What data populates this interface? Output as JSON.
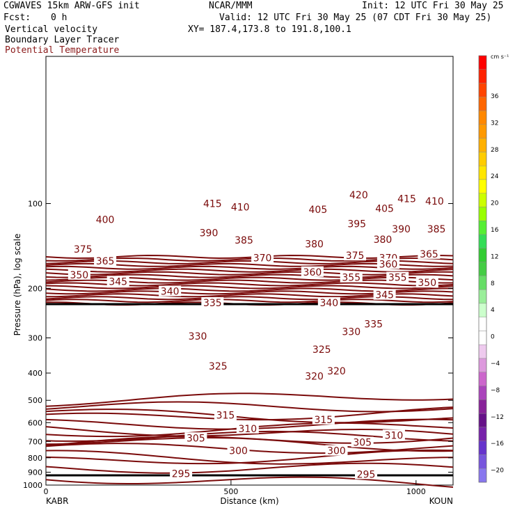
{
  "header": {
    "model": "CGWAVES 15km ARW-GFS init",
    "org": "NCAR/MMM",
    "init": "Init: 12 UTC Fri 30 May 25",
    "fcst_label": "Fcst:",
    "fcst_value": "0 h",
    "valid": "Valid: 12 UTC Fri 30 May 25 (07 CDT Fri 30 May 25)",
    "field1": "Vertical velocity",
    "xy": "XY= 187.4,173.8 to 191.8,100.1",
    "field2": "Boundary Layer Tracer",
    "field3": "Potential Temperature"
  },
  "colors": {
    "contour": "#7a0a0a",
    "tropopause": "#000000",
    "text": "#000000",
    "field3": "#8b1a1a"
  },
  "chart_data": {
    "type": "line",
    "title": "Potential Temperature",
    "xlabel": "Distance (km)",
    "ylabel": "Pressure (hPa), log scale",
    "xlim": [
      0,
      1100
    ],
    "ylim": [
      1000,
      30
    ],
    "x_ticks": [
      "0",
      "500",
      "1000"
    ],
    "y_ticks": [
      "100",
      "200",
      "300",
      "400",
      "500",
      "600",
      "700",
      "800",
      "900",
      "1000"
    ],
    "left_endpoint": "KABR",
    "right_endpoint": "KOUN",
    "contour_labels": [
      {
        "text": "420",
        "x": 845,
        "p": 93
      },
      {
        "text": "415",
        "x": 450,
        "p": 100
      },
      {
        "text": "415",
        "x": 975,
        "p": 96
      },
      {
        "text": "410",
        "x": 525,
        "p": 103
      },
      {
        "text": "410",
        "x": 1050,
        "p": 98
      },
      {
        "text": "405",
        "x": 735,
        "p": 105
      },
      {
        "text": "405",
        "x": 915,
        "p": 104
      },
      {
        "text": "400",
        "x": 160,
        "p": 114
      },
      {
        "text": "395",
        "x": 840,
        "p": 118
      },
      {
        "text": "390",
        "x": 440,
        "p": 127
      },
      {
        "text": "390",
        "x": 960,
        "p": 123
      },
      {
        "text": "385",
        "x": 535,
        "p": 135
      },
      {
        "text": "385",
        "x": 1055,
        "p": 123
      },
      {
        "text": "380",
        "x": 725,
        "p": 139
      },
      {
        "text": "380",
        "x": 910,
        "p": 134
      },
      {
        "text": "375",
        "x": 100,
        "p": 145
      },
      {
        "text": "375",
        "x": 835,
        "p": 153
      },
      {
        "text": "370",
        "x": 925,
        "p": 156
      },
      {
        "text": "370",
        "x": 585,
        "p": 156
      },
      {
        "text": "365",
        "x": 160,
        "p": 160
      },
      {
        "text": "365",
        "x": 1035,
        "p": 151
      },
      {
        "text": "360",
        "x": 720,
        "p": 175
      },
      {
        "text": "360",
        "x": 925,
        "p": 164
      },
      {
        "text": "355",
        "x": 825,
        "p": 183
      },
      {
        "text": "355",
        "x": 950,
        "p": 183
      },
      {
        "text": "350",
        "x": 90,
        "p": 179
      },
      {
        "text": "350",
        "x": 1030,
        "p": 191
      },
      {
        "text": "345",
        "x": 195,
        "p": 189
      },
      {
        "text": "345",
        "x": 915,
        "p": 211
      },
      {
        "text": "340",
        "x": 335,
        "p": 205
      },
      {
        "text": "340",
        "x": 765,
        "p": 225
      },
      {
        "text": "335",
        "x": 450,
        "p": 225
      },
      {
        "text": "335",
        "x": 885,
        "p": 268
      },
      {
        "text": "330",
        "x": 410,
        "p": 296
      },
      {
        "text": "330",
        "x": 825,
        "p": 285
      },
      {
        "text": "325",
        "x": 465,
        "p": 378
      },
      {
        "text": "325",
        "x": 745,
        "p": 330
      },
      {
        "text": "320",
        "x": 725,
        "p": 410
      },
      {
        "text": "320",
        "x": 785,
        "p": 393
      },
      {
        "text": "315",
        "x": 485,
        "p": 565
      },
      {
        "text": "315",
        "x": 750,
        "p": 585
      },
      {
        "text": "310",
        "x": 545,
        "p": 630
      },
      {
        "text": "310",
        "x": 940,
        "p": 665
      },
      {
        "text": "305",
        "x": 405,
        "p": 680
      },
      {
        "text": "305",
        "x": 855,
        "p": 705
      },
      {
        "text": "300",
        "x": 520,
        "p": 755
      },
      {
        "text": "300",
        "x": 785,
        "p": 755
      },
      {
        "text": "295",
        "x": 365,
        "p": 910
      },
      {
        "text": "295",
        "x": 865,
        "p": 915
      }
    ]
  },
  "colorbar": {
    "unit": "cm s⁻¹",
    "labels": [
      "36",
      "32",
      "28",
      "24",
      "20",
      "16",
      "12",
      "8",
      "4",
      "0",
      "−4",
      "−8",
      "−12",
      "−16",
      "−20"
    ],
    "colors": [
      "#ff0000",
      "#ff2200",
      "#ff4400",
      "#ff6600",
      "#ff8800",
      "#ff9900",
      "#ffb000",
      "#ffcc00",
      "#ffe600",
      "#ffff00",
      "#ccff00",
      "#99ff00",
      "#55ee33",
      "#33dd55",
      "#33cc33",
      "#44cc44",
      "#66dd66",
      "#99ee99",
      "#ccffcc",
      "#ffffff",
      "#ffffff",
      "#eecaee",
      "#dd99dd",
      "#cc66cc",
      "#aa44bb",
      "#882299",
      "#661188",
      "#7722aa",
      "#6633cc",
      "#7755dd",
      "#8877ee"
    ]
  }
}
